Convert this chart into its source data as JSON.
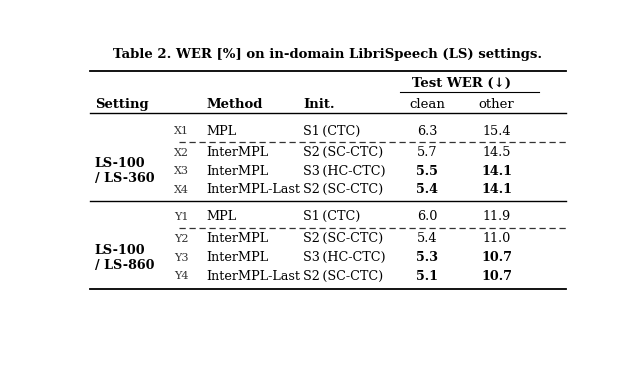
{
  "title": "Table 2. WER [%] on in-domain LibriSpeech (LS) settings.",
  "test_wer_header": "Test WER (↓)",
  "rows": [
    {
      "id": "X1",
      "method": "MPL",
      "init": "S1 (CTC)",
      "clean": "6.3",
      "other": "15.4",
      "clean_bold": false,
      "other_bold": false
    },
    {
      "id": "X2",
      "method": "InterMPL",
      "init": "S2 (SC-CTC)",
      "clean": "5.7",
      "other": "14.5",
      "clean_bold": false,
      "other_bold": false
    },
    {
      "id": "X3",
      "method": "InterMPL",
      "init": "S3 (HC-CTC)",
      "clean": "5.5",
      "other": "14.1",
      "clean_bold": true,
      "other_bold": true
    },
    {
      "id": "X4",
      "method": "InterMPL-Last",
      "init": "S2 (SC-CTC)",
      "clean": "5.4",
      "other": "14.1",
      "clean_bold": true,
      "other_bold": true
    },
    {
      "id": "Y1",
      "method": "MPL",
      "init": "S1 (CTC)",
      "clean": "6.0",
      "other": "11.9",
      "clean_bold": false,
      "other_bold": false
    },
    {
      "id": "Y2",
      "method": "InterMPL",
      "init": "S2 (SC-CTC)",
      "clean": "5.4",
      "other": "11.0",
      "clean_bold": false,
      "other_bold": false
    },
    {
      "id": "Y3",
      "method": "InterMPL",
      "init": "S3 (HC-CTC)",
      "clean": "5.3",
      "other": "10.7",
      "clean_bold": true,
      "other_bold": true
    },
    {
      "id": "Y4",
      "method": "InterMPL-Last",
      "init": "S2 (SC-CTC)",
      "clean": "5.1",
      "other": "10.7",
      "clean_bold": true,
      "other_bold": true
    }
  ],
  "group1_label": "LS-100\n/ LS-360",
  "group2_label": "LS-100\n/ LS-860",
  "figsize": [
    6.4,
    3.7
  ],
  "dpi": 100
}
